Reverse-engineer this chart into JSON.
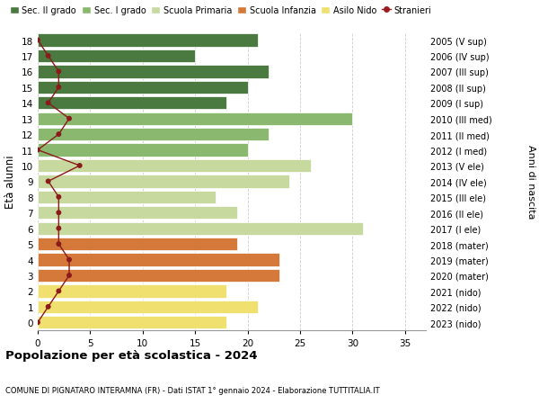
{
  "ages": [
    0,
    1,
    2,
    3,
    4,
    5,
    6,
    7,
    8,
    9,
    10,
    11,
    12,
    13,
    14,
    15,
    16,
    17,
    18
  ],
  "years": [
    "2023 (nido)",
    "2022 (nido)",
    "2021 (nido)",
    "2020 (mater)",
    "2019 (mater)",
    "2018 (mater)",
    "2017 (I ele)",
    "2016 (II ele)",
    "2015 (III ele)",
    "2014 (IV ele)",
    "2013 (V ele)",
    "2012 (I med)",
    "2011 (II med)",
    "2010 (III med)",
    "2009 (I sup)",
    "2008 (II sup)",
    "2007 (III sup)",
    "2006 (IV sup)",
    "2005 (V sup)"
  ],
  "bar_values": [
    18,
    21,
    18,
    23,
    23,
    19,
    31,
    19,
    17,
    24,
    26,
    20,
    22,
    30,
    18,
    20,
    22,
    15,
    21
  ],
  "bar_colors": [
    "#f0e070",
    "#f0e070",
    "#f0e070",
    "#d4793a",
    "#d4793a",
    "#d4793a",
    "#c8d9a0",
    "#c8d9a0",
    "#c8d9a0",
    "#c8d9a0",
    "#c8d9a0",
    "#8ab86e",
    "#8ab86e",
    "#8ab86e",
    "#4a7a40",
    "#4a7a40",
    "#4a7a40",
    "#4a7a40",
    "#4a7a40"
  ],
  "stranieri_values": [
    0,
    1,
    2,
    3,
    3,
    2,
    2,
    2,
    2,
    1,
    4,
    0,
    2,
    3,
    1,
    2,
    2,
    1,
    0
  ],
  "legend_labels": [
    "Sec. II grado",
    "Sec. I grado",
    "Scuola Primaria",
    "Scuola Infanzia",
    "Asilo Nido",
    "Stranieri"
  ],
  "legend_colors": [
    "#4a7a40",
    "#8ab86e",
    "#c8d9a0",
    "#d4793a",
    "#f0e070",
    "#9b1c1c"
  ],
  "ylabel_label": "Età alunni",
  "right_label": "Anni di nascita",
  "title": "Popolazione per età scolastica - 2024",
  "subtitle": "COMUNE DI PIGNATARO INTERAMNA (FR) - Dati ISTAT 1° gennaio 2024 - Elaborazione TUTTITALIA.IT",
  "xlim": [
    0,
    37
  ],
  "xticks": [
    0,
    5,
    10,
    15,
    20,
    25,
    30,
    35
  ],
  "bg_color": "#ffffff",
  "bar_height": 0.82,
  "grid_color": "#cccccc",
  "stranieri_color": "#8b1a1a"
}
